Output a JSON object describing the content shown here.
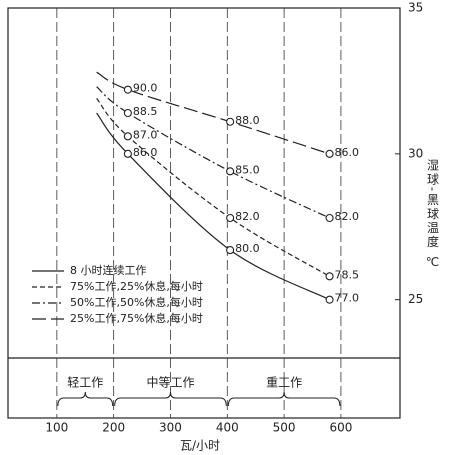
{
  "chart_data": {
    "type": "line",
    "x_label": "瓦/小时",
    "y_label": "湿球-黑球温度 ℃",
    "x": [
      170,
      225,
      405,
      580
    ],
    "series": [
      {
        "name": "8 小时连续工作",
        "line_style": "solid",
        "color": "#222",
        "values": [
          31.4,
          30.0,
          26.7,
          25.0
        ],
        "value_labels": [
          null,
          "86.0",
          "80.0",
          "77.0"
        ]
      },
      {
        "name": "75%工作,25%休息,每小时",
        "line_style": "dashed",
        "color": "#222",
        "values": [
          31.9,
          30.6,
          27.8,
          25.8
        ],
        "value_labels": [
          null,
          "87.0",
          "82.0",
          "78.5"
        ]
      },
      {
        "name": "50%工作,50%休息,每小时",
        "line_style": "dashdot",
        "color": "#222",
        "values": [
          32.3,
          31.4,
          29.4,
          27.8
        ],
        "value_labels": [
          null,
          "88.5",
          "85.0",
          "82.0"
        ]
      },
      {
        "name": "25%工作,75%休息,每小时",
        "line_style": "longdash",
        "color": "#222",
        "values": [
          32.8,
          32.2,
          31.1,
          30.0
        ],
        "value_labels": [
          null,
          "90.0",
          "88.0",
          "86.0"
        ]
      }
    ],
    "xlim": [
      14,
      704
    ],
    "xticks": [
      100,
      200,
      300,
      400,
      500,
      600
    ],
    "ylim": [
      23,
      35
    ],
    "yticks": [
      25,
      30,
      35
    ],
    "work_levels": [
      {
        "label": "轻工作",
        "range": [
          100,
          200
        ]
      },
      {
        "label": "中等工作",
        "range": [
          200,
          400
        ]
      },
      {
        "label": "重工作",
        "range": [
          400,
          600
        ]
      }
    ]
  }
}
